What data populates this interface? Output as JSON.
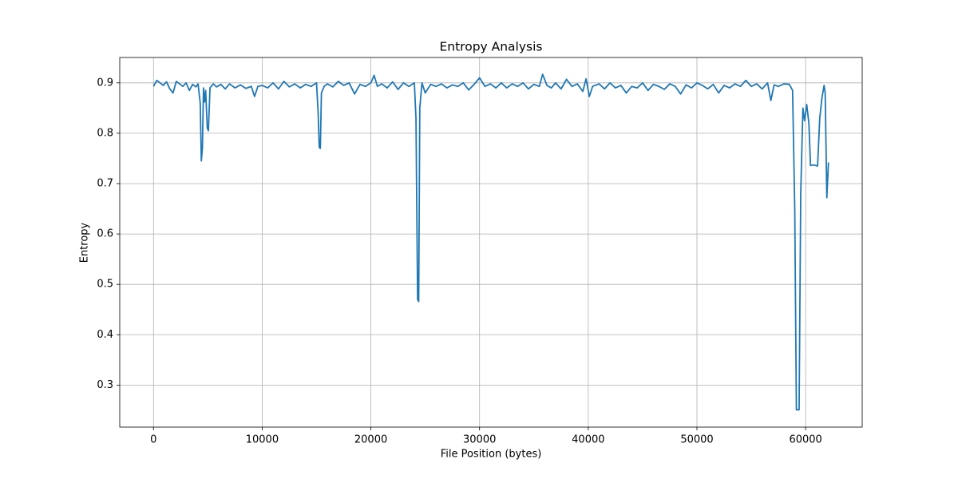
{
  "chart_data": {
    "type": "line",
    "title": "Entropy Analysis",
    "x_label": "File Position (bytes)",
    "y_label": "Entropy",
    "xlim": [
      -3105,
      65205
    ],
    "ylim": [
      0.2166,
      0.9504
    ],
    "xticks": [
      0,
      10000,
      20000,
      30000,
      40000,
      50000,
      60000
    ],
    "yticks": [
      0.3,
      0.4,
      0.5,
      0.6,
      0.7,
      0.8,
      0.9
    ],
    "grid": true,
    "series": [
      {
        "color": "#1f77b4",
        "x": [
          0,
          300,
          600,
          900,
          1200,
          1500,
          1800,
          2100,
          2400,
          2700,
          3000,
          3300,
          3600,
          3900,
          4100,
          4300,
          4400,
          4500,
          4600,
          4700,
          4800,
          4950,
          5050,
          5200,
          5500,
          5800,
          6200,
          6600,
          7000,
          7500,
          8000,
          8500,
          9000,
          9300,
          9600,
          10000,
          10500,
          11000,
          11500,
          12000,
          12500,
          13000,
          13500,
          14000,
          14500,
          15000,
          15150,
          15250,
          15350,
          15450,
          15700,
          16000,
          16500,
          17000,
          17500,
          18000,
          18500,
          19000,
          19500,
          20000,
          20300,
          20600,
          21000,
          21500,
          22000,
          22500,
          23000,
          23500,
          24000,
          24150,
          24300,
          24400,
          24500,
          24700,
          25000,
          25500,
          26000,
          26500,
          27000,
          27500,
          28000,
          28500,
          29000,
          29500,
          30000,
          30500,
          31000,
          31500,
          32000,
          32500,
          33000,
          33500,
          34000,
          34500,
          35000,
          35500,
          35800,
          36200,
          36600,
          37000,
          37500,
          38000,
          38500,
          39000,
          39500,
          39800,
          40100,
          40400,
          41000,
          41500,
          42000,
          42500,
          43000,
          43500,
          44000,
          44500,
          45000,
          45500,
          46000,
          46500,
          47000,
          47500,
          48000,
          48500,
          49000,
          49500,
          50000,
          50500,
          51000,
          51500,
          52000,
          52500,
          53000,
          53500,
          54000,
          54500,
          55000,
          55500,
          56000,
          56500,
          56800,
          57100,
          57500,
          58000,
          58500,
          58800,
          59000,
          59150,
          59400,
          59550,
          59750,
          59900,
          60100,
          60300,
          60450,
          60700,
          60900,
          61100,
          61300,
          61500,
          61700,
          61800,
          61950,
          62100
        ],
        "values": [
          0.893,
          0.905,
          0.9,
          0.895,
          0.902,
          0.888,
          0.88,
          0.903,
          0.898,
          0.893,
          0.9,
          0.885,
          0.897,
          0.892,
          0.898,
          0.86,
          0.745,
          0.77,
          0.89,
          0.862,
          0.885,
          0.81,
          0.805,
          0.89,
          0.898,
          0.892,
          0.897,
          0.888,
          0.898,
          0.89,
          0.896,
          0.889,
          0.893,
          0.873,
          0.893,
          0.895,
          0.89,
          0.9,
          0.888,
          0.903,
          0.892,
          0.898,
          0.89,
          0.897,
          0.893,
          0.9,
          0.84,
          0.772,
          0.77,
          0.88,
          0.893,
          0.898,
          0.892,
          0.903,
          0.895,
          0.9,
          0.878,
          0.897,
          0.893,
          0.9,
          0.915,
          0.893,
          0.898,
          0.89,
          0.902,
          0.887,
          0.9,
          0.893,
          0.9,
          0.83,
          0.47,
          0.466,
          0.85,
          0.9,
          0.88,
          0.897,
          0.893,
          0.898,
          0.89,
          0.896,
          0.893,
          0.9,
          0.886,
          0.897,
          0.91,
          0.893,
          0.898,
          0.89,
          0.9,
          0.89,
          0.898,
          0.893,
          0.9,
          0.888,
          0.897,
          0.893,
          0.917,
          0.895,
          0.89,
          0.9,
          0.888,
          0.907,
          0.893,
          0.898,
          0.883,
          0.908,
          0.873,
          0.893,
          0.898,
          0.888,
          0.9,
          0.89,
          0.895,
          0.88,
          0.893,
          0.89,
          0.9,
          0.885,
          0.897,
          0.893,
          0.887,
          0.898,
          0.893,
          0.878,
          0.896,
          0.89,
          0.9,
          0.895,
          0.888,
          0.897,
          0.88,
          0.895,
          0.89,
          0.898,
          0.893,
          0.905,
          0.893,
          0.898,
          0.888,
          0.9,
          0.865,
          0.896,
          0.893,
          0.898,
          0.897,
          0.885,
          0.65,
          0.251,
          0.251,
          0.68,
          0.85,
          0.825,
          0.857,
          0.82,
          0.736,
          0.737,
          0.736,
          0.735,
          0.83,
          0.87,
          0.895,
          0.88,
          0.672,
          0.742
        ]
      }
    ]
  }
}
